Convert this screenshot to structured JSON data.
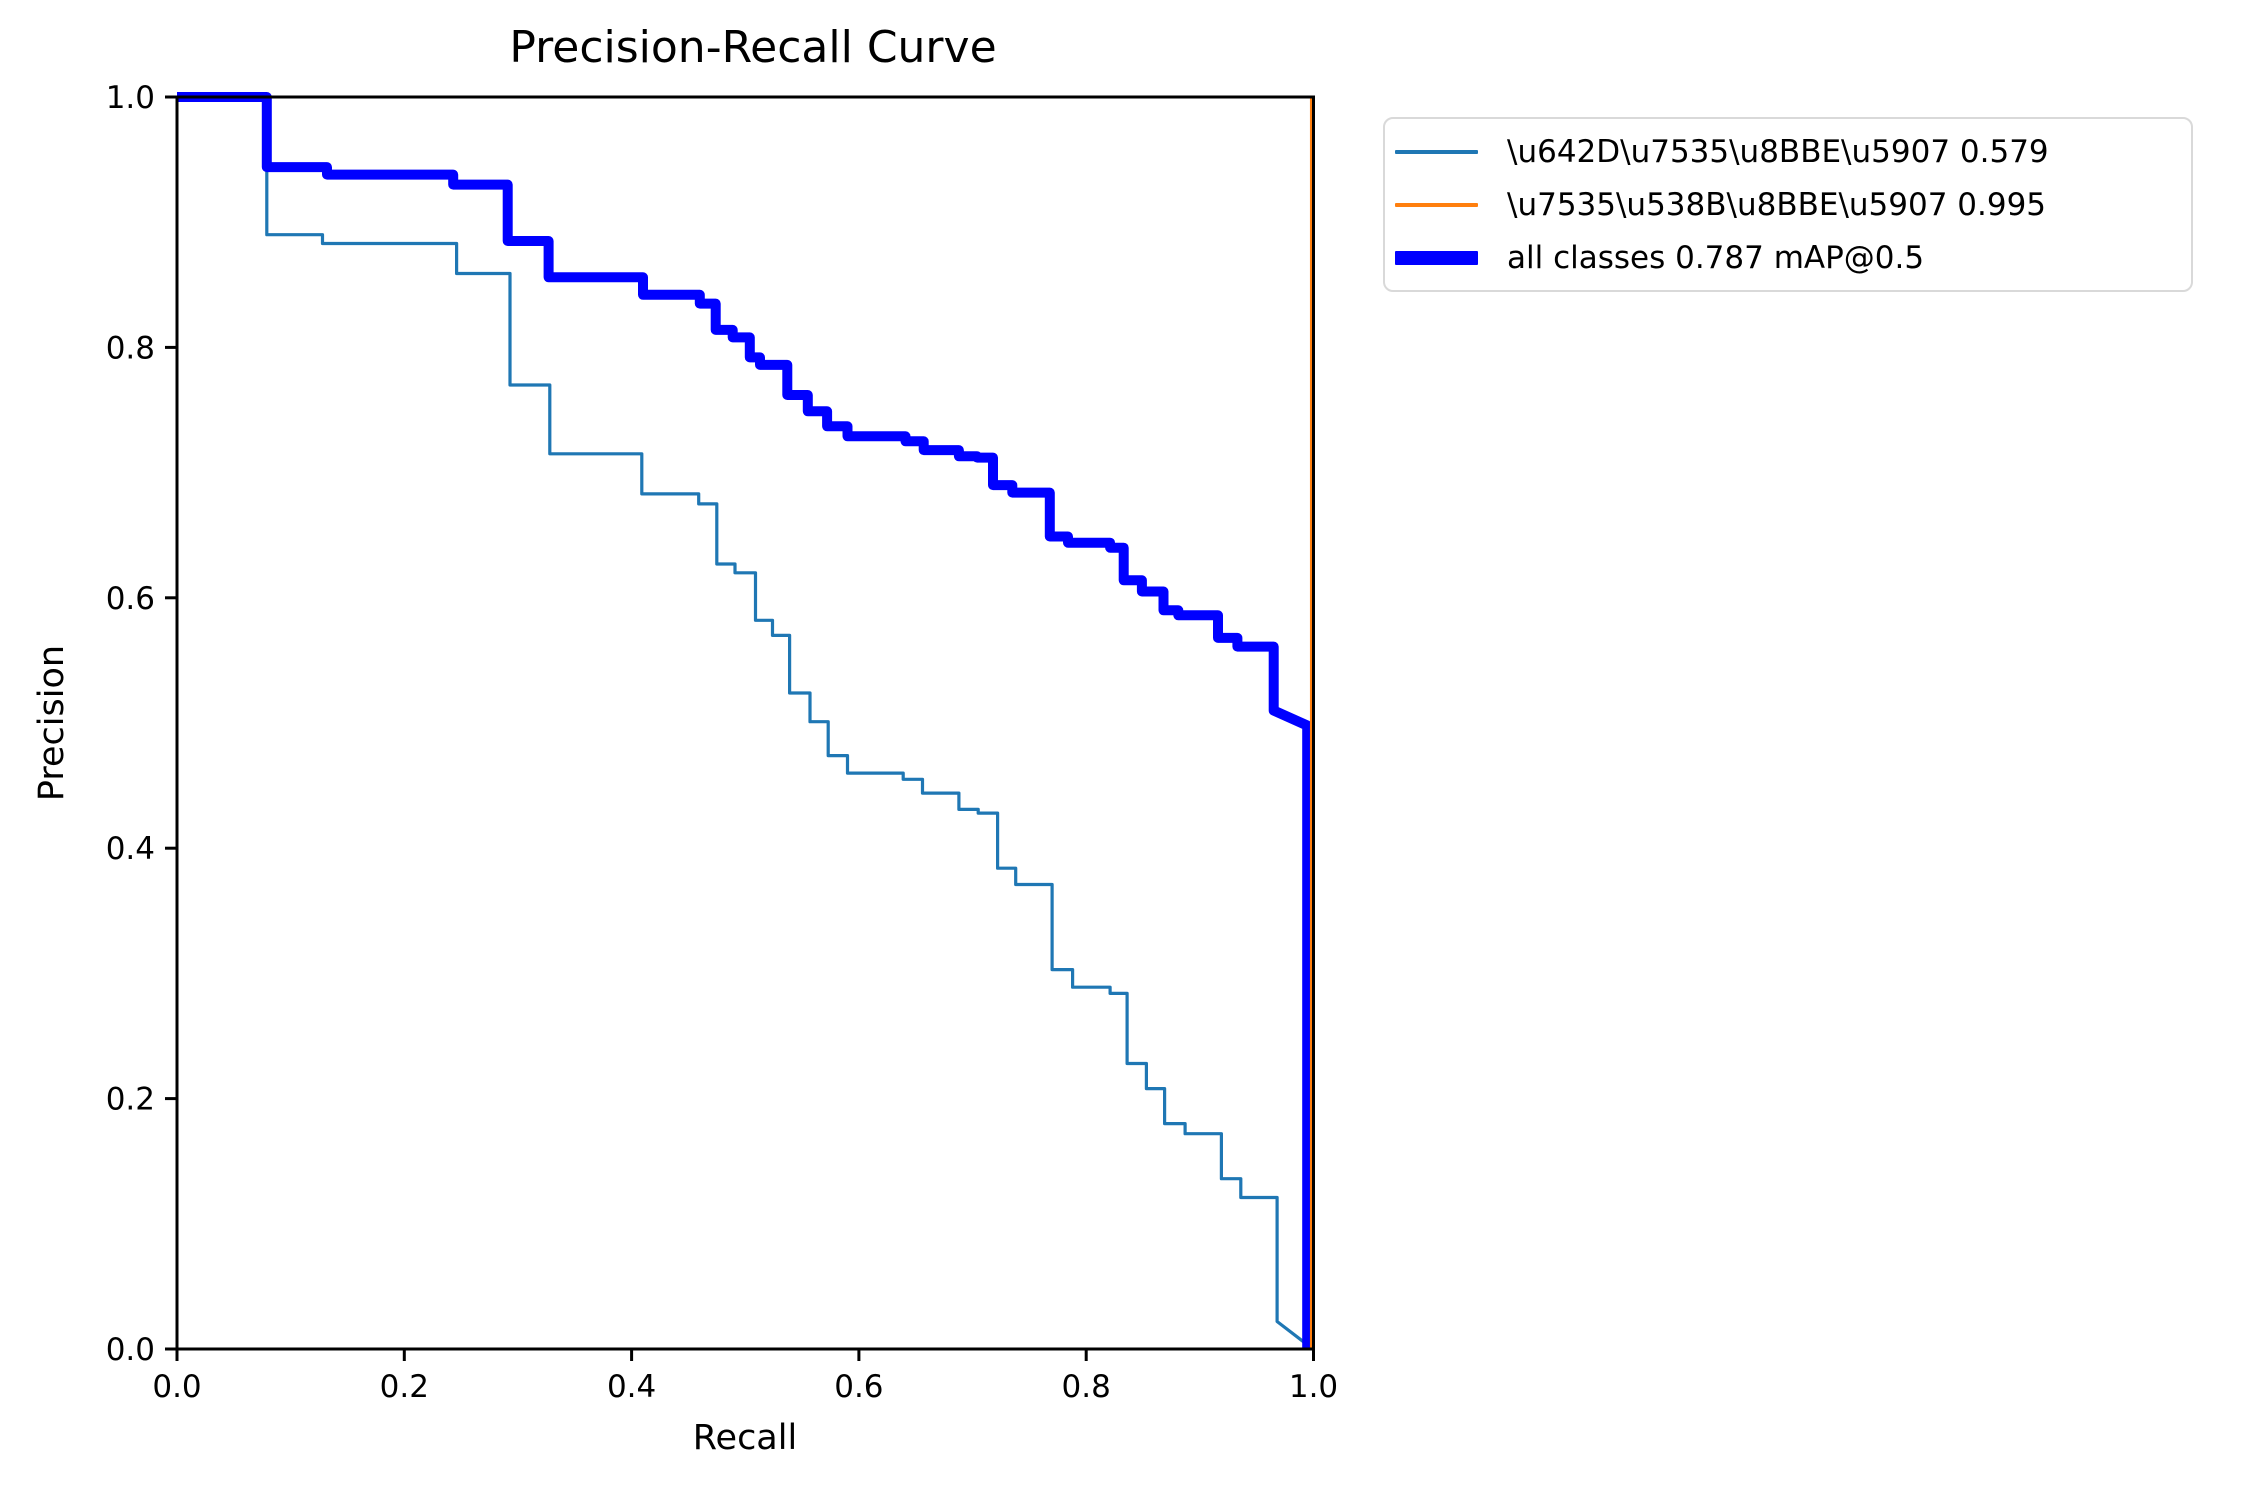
{
  "chart_data": {
    "type": "line",
    "title": "Precision-Recall Curve",
    "xlabel": "Recall",
    "ylabel": "Precision",
    "xlim": [
      0.0,
      1.0
    ],
    "ylim": [
      0.0,
      1.0
    ],
    "xticks": [
      "0.0",
      "0.2",
      "0.4",
      "0.6",
      "0.8",
      "1.0"
    ],
    "yticks": [
      "0.0",
      "0.2",
      "0.4",
      "0.6",
      "0.8",
      "1.0"
    ],
    "grid": false,
    "legend_position": "outside-upper-right",
    "series": [
      {
        "name": "\\u642D\\u7535\\u8BBE\\u5907 0.579",
        "color": "#1f77b4",
        "width": 3.2,
        "swatch_height": 4,
        "points": [
          [
            0,
            1
          ],
          [
            0.079,
            1
          ],
          [
            0.079,
            0.89
          ],
          [
            0.128,
            0.89
          ],
          [
            0.128,
            0.883
          ],
          [
            0.246,
            0.883
          ],
          [
            0.246,
            0.859
          ],
          [
            0.293,
            0.859
          ],
          [
            0.293,
            0.77
          ],
          [
            0.328,
            0.77
          ],
          [
            0.328,
            0.715
          ],
          [
            0.409,
            0.715
          ],
          [
            0.409,
            0.683
          ],
          [
            0.459,
            0.683
          ],
          [
            0.459,
            0.675
          ],
          [
            0.475,
            0.675
          ],
          [
            0.475,
            0.627
          ],
          [
            0.491,
            0.627
          ],
          [
            0.491,
            0.62
          ],
          [
            0.509,
            0.62
          ],
          [
            0.509,
            0.582
          ],
          [
            0.524,
            0.582
          ],
          [
            0.524,
            0.57
          ],
          [
            0.539,
            0.57
          ],
          [
            0.539,
            0.524
          ],
          [
            0.557,
            0.524
          ],
          [
            0.557,
            0.501
          ],
          [
            0.573,
            0.501
          ],
          [
            0.573,
            0.474
          ],
          [
            0.59,
            0.474
          ],
          [
            0.59,
            0.46
          ],
          [
            0.639,
            0.46
          ],
          [
            0.639,
            0.455
          ],
          [
            0.656,
            0.455
          ],
          [
            0.656,
            0.444
          ],
          [
            0.688,
            0.444
          ],
          [
            0.688,
            0.431
          ],
          [
            0.705,
            0.431
          ],
          [
            0.705,
            0.428
          ],
          [
            0.722,
            0.428
          ],
          [
            0.722,
            0.384
          ],
          [
            0.738,
            0.384
          ],
          [
            0.738,
            0.371
          ],
          [
            0.77,
            0.371
          ],
          [
            0.77,
            0.303
          ],
          [
            0.788,
            0.303
          ],
          [
            0.788,
            0.289
          ],
          [
            0.821,
            0.289
          ],
          [
            0.821,
            0.284
          ],
          [
            0.836,
            0.284
          ],
          [
            0.836,
            0.228
          ],
          [
            0.853,
            0.228
          ],
          [
            0.853,
            0.208
          ],
          [
            0.869,
            0.208
          ],
          [
            0.869,
            0.18
          ],
          [
            0.887,
            0.18
          ],
          [
            0.887,
            0.172
          ],
          [
            0.919,
            0.172
          ],
          [
            0.919,
            0.136
          ],
          [
            0.936,
            0.136
          ],
          [
            0.936,
            0.121
          ],
          [
            0.968,
            0.121
          ],
          [
            0.968,
            0.022
          ],
          [
            0.998,
            0.001
          ]
        ]
      },
      {
        "name": "\\u7535\\u538B\\u8BBE\\u5907 0.995",
        "color": "#ff7f0e",
        "width": 2.5,
        "swatch_height": 4,
        "points": [
          [
            0,
            1
          ],
          [
            0.998,
            1
          ],
          [
            0.998,
            0
          ]
        ]
      },
      {
        "name": "all classes 0.787 mAP@0.5",
        "color": "#0000ff",
        "width": 10,
        "swatch_height": 14,
        "points": [
          [
            0,
            1
          ],
          [
            0.079,
            1
          ],
          [
            0.079,
            0.944
          ],
          [
            0.132,
            0.944
          ],
          [
            0.132,
            0.938
          ],
          [
            0.243,
            0.938
          ],
          [
            0.243,
            0.93
          ],
          [
            0.291,
            0.93
          ],
          [
            0.291,
            0.885
          ],
          [
            0.327,
            0.885
          ],
          [
            0.327,
            0.856
          ],
          [
            0.41,
            0.856
          ],
          [
            0.41,
            0.842
          ],
          [
            0.46,
            0.842
          ],
          [
            0.46,
            0.835
          ],
          [
            0.474,
            0.835
          ],
          [
            0.474,
            0.814
          ],
          [
            0.489,
            0.814
          ],
          [
            0.489,
            0.808
          ],
          [
            0.504,
            0.808
          ],
          [
            0.504,
            0.792
          ],
          [
            0.513,
            0.792
          ],
          [
            0.513,
            0.786
          ],
          [
            0.537,
            0.786
          ],
          [
            0.537,
            0.762
          ],
          [
            0.555,
            0.762
          ],
          [
            0.555,
            0.749
          ],
          [
            0.572,
            0.749
          ],
          [
            0.572,
            0.737
          ],
          [
            0.59,
            0.737
          ],
          [
            0.59,
            0.729
          ],
          [
            0.641,
            0.729
          ],
          [
            0.641,
            0.725
          ],
          [
            0.657,
            0.725
          ],
          [
            0.657,
            0.718
          ],
          [
            0.688,
            0.718
          ],
          [
            0.688,
            0.713
          ],
          [
            0.704,
            0.713
          ],
          [
            0.704,
            0.712
          ],
          [
            0.718,
            0.712
          ],
          [
            0.718,
            0.69
          ],
          [
            0.735,
            0.69
          ],
          [
            0.735,
            0.684
          ],
          [
            0.768,
            0.684
          ],
          [
            0.768,
            0.649
          ],
          [
            0.784,
            0.649
          ],
          [
            0.784,
            0.644
          ],
          [
            0.821,
            0.644
          ],
          [
            0.821,
            0.64
          ],
          [
            0.833,
            0.64
          ],
          [
            0.833,
            0.614
          ],
          [
            0.849,
            0.614
          ],
          [
            0.849,
            0.605
          ],
          [
            0.868,
            0.605
          ],
          [
            0.868,
            0.59
          ],
          [
            0.881,
            0.59
          ],
          [
            0.881,
            0.586
          ],
          [
            0.916,
            0.586
          ],
          [
            0.916,
            0.568
          ],
          [
            0.933,
            0.568
          ],
          [
            0.933,
            0.561
          ],
          [
            0.965,
            0.561
          ],
          [
            0.965,
            0.51
          ],
          [
            0.9945,
            0.498
          ],
          [
            0.9945,
            0
          ]
        ]
      }
    ]
  }
}
